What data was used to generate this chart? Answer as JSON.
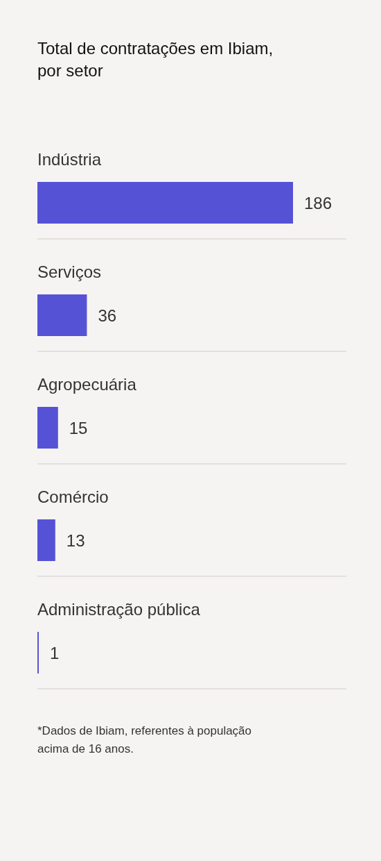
{
  "chart_data": {
    "type": "bar",
    "orientation": "horizontal",
    "title": "Total de contratações em Ibiam, por setor",
    "categories": [
      "Indústria",
      "Serviços",
      "Agropecuária",
      "Comércio",
      "Administração pública"
    ],
    "values": [
      186,
      36,
      15,
      13,
      1
    ],
    "color": "#5652d6",
    "data_labels": true,
    "annotations": [
      "*Dados de Ibiam, referentes à população acima de 16 anos."
    ]
  }
}
